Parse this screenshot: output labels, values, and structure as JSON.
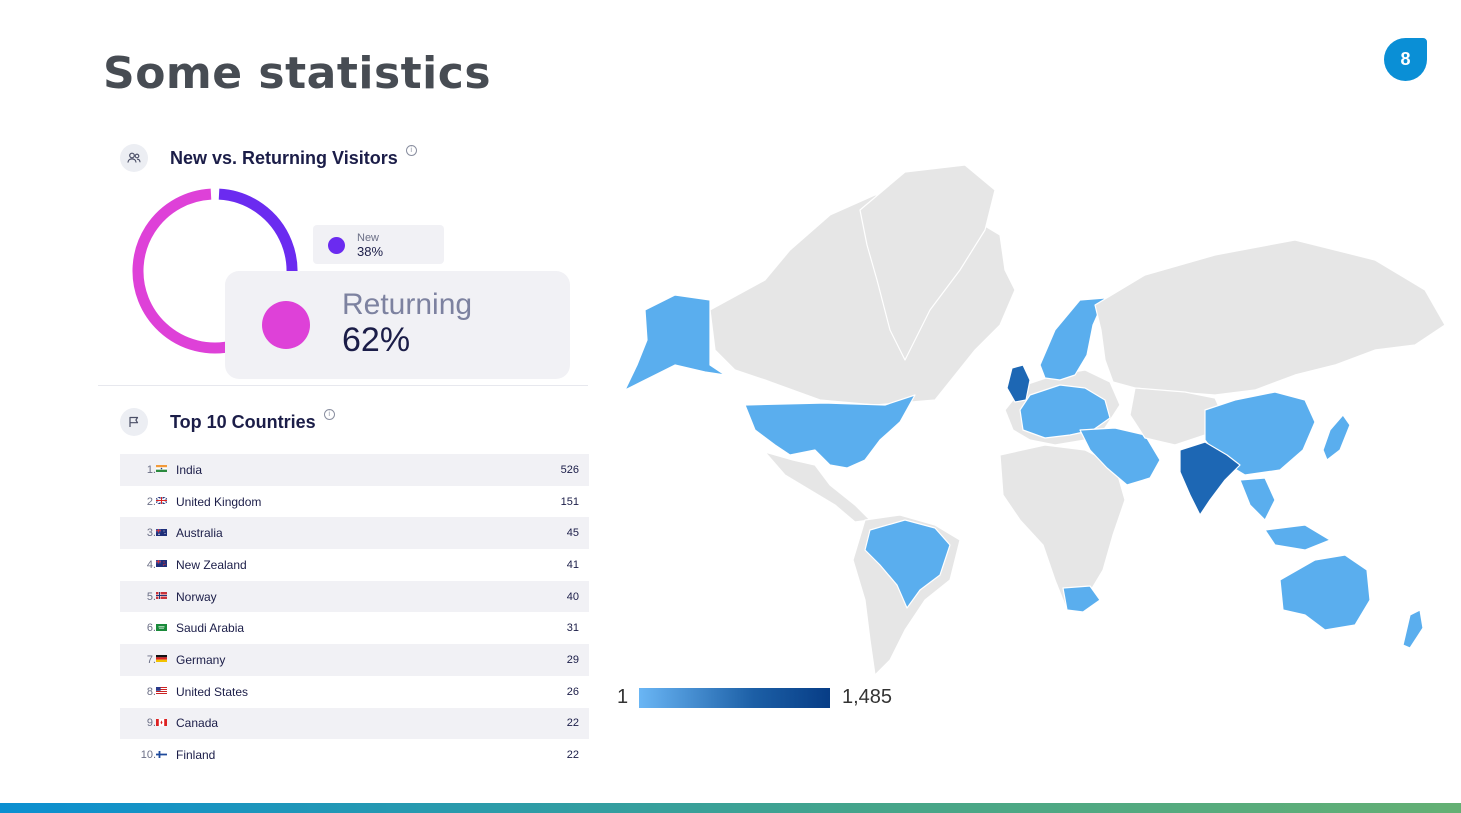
{
  "slide": {
    "title": "Some statistics",
    "page_number": "8"
  },
  "visitors": {
    "title": "New vs. Returning Visitors",
    "info_glyph": "i",
    "new": {
      "label": "New",
      "value": "38%",
      "share": 0.38,
      "color": "#6b2bf0"
    },
    "returning": {
      "label": "Returning",
      "value": "62%",
      "share": 0.62,
      "color": "#de41d8"
    }
  },
  "countries": {
    "title": "Top 10 Countries",
    "info_glyph": "i",
    "rows": [
      {
        "rank": "1.",
        "name": "India",
        "value": "526",
        "flag": "india-flag"
      },
      {
        "rank": "2.",
        "name": "United Kingdom",
        "value": "151",
        "flag": "uk-flag"
      },
      {
        "rank": "3.",
        "name": "Australia",
        "value": "45",
        "flag": "australia-flag"
      },
      {
        "rank": "4.",
        "name": "New Zealand",
        "value": "41",
        "flag": "new-zealand-flag"
      },
      {
        "rank": "5.",
        "name": "Norway",
        "value": "40",
        "flag": "norway-flag"
      },
      {
        "rank": "6.",
        "name": "Saudi Arabia",
        "value": "31",
        "flag": "saudi-arabia-flag"
      },
      {
        "rank": "7.",
        "name": "Germany",
        "value": "29",
        "flag": "germany-flag"
      },
      {
        "rank": "8.",
        "name": "United States",
        "value": "26",
        "flag": "usa-flag"
      },
      {
        "rank": "9.",
        "name": "Canada",
        "value": "22",
        "flag": "canada-flag"
      },
      {
        "rank": "10.",
        "name": "Finland",
        "value": "22",
        "flag": "finland-flag"
      }
    ]
  },
  "map": {
    "scale_min": "1",
    "scale_max": "1,485",
    "colors": {
      "land": "#e6e6e6",
      "light": "#5aaeee",
      "dark": "#1d67b4"
    }
  }
}
